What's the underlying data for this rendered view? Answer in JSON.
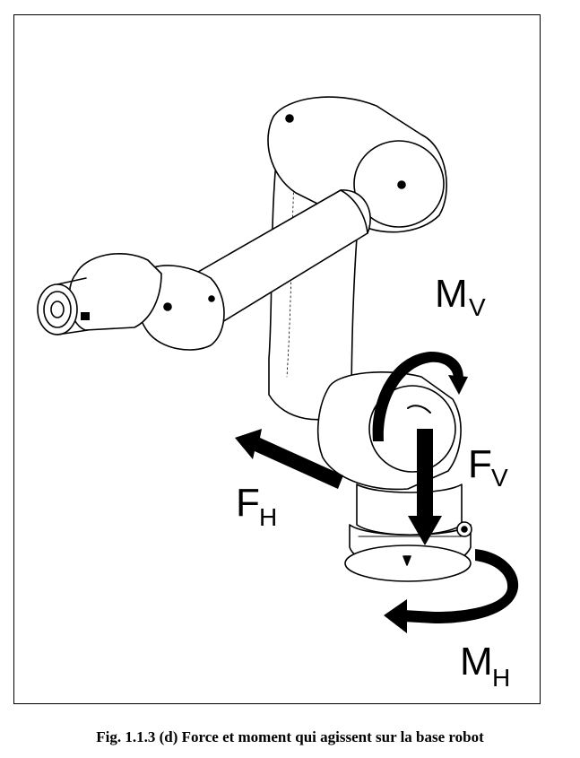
{
  "labels": {
    "mv_main": "M",
    "mv_sub": "V",
    "fv_main": "F",
    "fv_sub": "V",
    "fh_main": "F",
    "fh_sub": "H",
    "mh_main": "M",
    "mh_sub": "H"
  },
  "caption": "Fig. 1.1.3 (d) Force et moment qui agissent sur la base robot"
}
